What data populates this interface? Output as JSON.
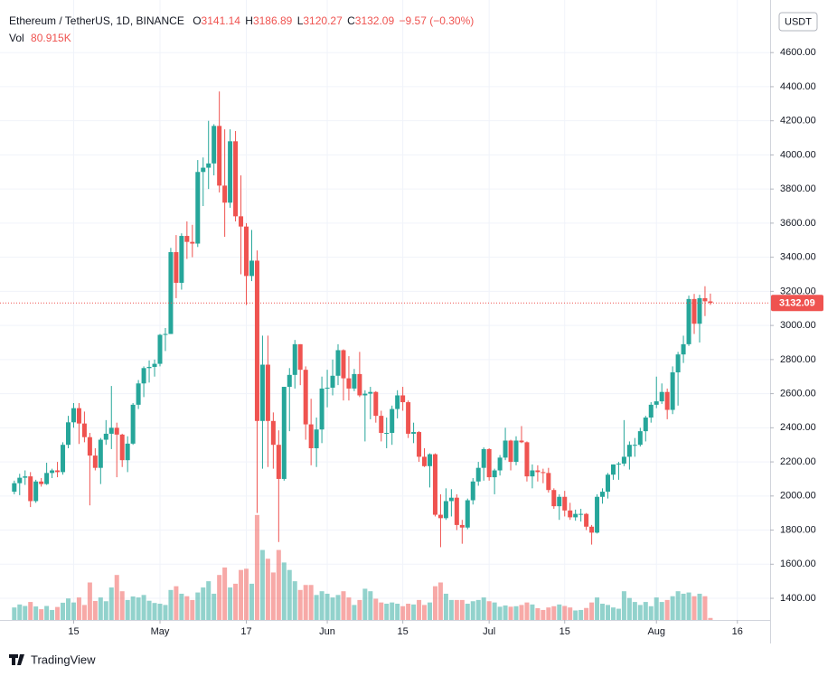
{
  "chart_data": {
    "type": "candlestick",
    "symbol": "Ethereum / TetherUS, 1D, BINANCE",
    "ohlc_prefixes": [
      "O",
      "H",
      "L",
      "C"
    ],
    "change": "−9.57 (−0.30%)",
    "volume_title": "Vol",
    "volume_last_label": "80.915K",
    "currency": "USDT",
    "logo": "TradingView",
    "up_color": "#26a69a",
    "down_color": "#ef5350",
    "grid": true,
    "x": [
      "04-04",
      "04-05",
      "04-06",
      "04-07",
      "04-08",
      "04-09",
      "04-10",
      "04-11",
      "04-12",
      "04-13",
      "04-14",
      "04-15",
      "04-16",
      "04-17",
      "04-18",
      "04-19",
      "04-20",
      "04-21",
      "04-22",
      "04-23",
      "04-24",
      "04-25",
      "04-26",
      "04-27",
      "04-28",
      "04-29",
      "04-30",
      "05-01",
      "05-02",
      "05-03",
      "05-04",
      "05-05",
      "05-06",
      "05-07",
      "05-08",
      "05-09",
      "05-10",
      "05-11",
      "05-12",
      "05-13",
      "05-14",
      "05-15",
      "05-16",
      "05-17",
      "05-18",
      "05-19",
      "05-20",
      "05-21",
      "05-22",
      "05-23",
      "05-24",
      "05-25",
      "05-26",
      "05-27",
      "05-28",
      "05-29",
      "05-30",
      "05-31",
      "06-01",
      "06-02",
      "06-03",
      "06-04",
      "06-05",
      "06-06",
      "06-07",
      "06-08",
      "06-09",
      "06-10",
      "06-11",
      "06-12",
      "06-13",
      "06-14",
      "06-15",
      "06-16",
      "06-17",
      "06-18",
      "06-19",
      "06-20",
      "06-21",
      "06-22",
      "06-23",
      "06-24",
      "06-25",
      "06-26",
      "06-27",
      "06-28",
      "06-29",
      "06-30",
      "07-01",
      "07-02",
      "07-03",
      "07-04",
      "07-05",
      "07-06",
      "07-07",
      "07-08",
      "07-09",
      "07-10",
      "07-11",
      "07-12",
      "07-13",
      "07-14",
      "07-15",
      "07-16",
      "07-17",
      "07-18",
      "07-19",
      "07-20",
      "07-21",
      "07-22",
      "07-23",
      "07-24",
      "07-25",
      "07-26",
      "07-27",
      "07-28",
      "07-29",
      "07-30",
      "07-31",
      "08-01",
      "08-02",
      "08-03",
      "08-04",
      "08-05",
      "08-06",
      "08-07",
      "08-08",
      "08-09",
      "08-10",
      "08-11"
    ],
    "open": [
      2025,
      2075,
      2107,
      2115,
      1970,
      2085,
      2070,
      2135,
      2150,
      2140,
      2300,
      2432,
      2515,
      2425,
      2345,
      2237,
      2165,
      2330,
      2365,
      2400,
      2360,
      2210,
      2307,
      2535,
      2660,
      2750,
      2757,
      2775,
      2945,
      2950,
      3430,
      3250,
      3525,
      3490,
      3480,
      3900,
      3925,
      3950,
      4170,
      3820,
      3720,
      4080,
      3640,
      3580,
      3290,
      3380,
      2440,
      2770,
      2440,
      2300,
      2100,
      2640,
      2710,
      2890,
      2740,
      2420,
      2280,
      2390,
      2630,
      2635,
      2705,
      2855,
      2690,
      2630,
      2715,
      2590,
      2600,
      2610,
      2470,
      2370,
      2370,
      2510,
      2590,
      2550,
      2365,
      2375,
      2230,
      2175,
      2245,
      1890,
      1870,
      1970,
      1990,
      1830,
      1815,
      1975,
      2085,
      2165,
      2275,
      2110,
      2150,
      2225,
      2325,
      2200,
      2325,
      2315,
      2115,
      2150,
      2140,
      2135,
      2035,
      1940,
      1995,
      1915,
      1875,
      1895,
      1895,
      1820,
      1785,
      1995,
      2025,
      2125,
      2185,
      2190,
      2230,
      2300,
      2300,
      2380,
      2460,
      2535,
      2555,
      2610,
      2505,
      2725,
      2830,
      2890,
      3155,
      3010,
      3160,
      3141.14
    ],
    "high": [
      2090,
      2130,
      2150,
      2140,
      2095,
      2105,
      2195,
      2160,
      2200,
      2315,
      2470,
      2545,
      2545,
      2495,
      2370,
      2280,
      2340,
      2445,
      2645,
      2430,
      2365,
      2350,
      2545,
      2680,
      2760,
      2795,
      2800,
      2950,
      2985,
      3455,
      3530,
      3540,
      3610,
      3590,
      3970,
      3985,
      4200,
      4180,
      4372,
      4150,
      4150,
      4140,
      3880,
      3600,
      3560,
      3440,
      2940,
      2940,
      2490,
      2385,
      2640,
      2750,
      2915,
      2890,
      2760,
      2570,
      2460,
      2700,
      2740,
      2800,
      2890,
      2860,
      2820,
      2745,
      2845,
      2620,
      2640,
      2615,
      2500,
      2460,
      2530,
      2620,
      2640,
      2560,
      2430,
      2380,
      2280,
      2250,
      2250,
      2010,
      2045,
      2040,
      2010,
      1860,
      1985,
      2105,
      2200,
      2285,
      2280,
      2160,
      2240,
      2400,
      2330,
      2350,
      2410,
      2320,
      2185,
      2180,
      2160,
      2165,
      2045,
      2010,
      2030,
      1960,
      1920,
      1925,
      1900,
      1830,
      2010,
      2045,
      2135,
      2185,
      2200,
      2445,
      2320,
      2340,
      2400,
      2470,
      2550,
      2700,
      2660,
      2630,
      2760,
      2845,
      2940,
      3175,
      3185,
      3180,
      3230,
      3186.89
    ],
    "low": [
      2010,
      2005,
      2065,
      1935,
      1960,
      2055,
      2065,
      2105,
      2110,
      2125,
      2280,
      2400,
      2305,
      2315,
      1945,
      2150,
      2070,
      2300,
      2275,
      2110,
      2170,
      2140,
      2300,
      2510,
      2580,
      2665,
      2700,
      2760,
      2850,
      2950,
      3160,
      3210,
      3390,
      3400,
      3460,
      3700,
      3800,
      3880,
      3780,
      3520,
      3690,
      3610,
      3300,
      3120,
      3260,
      1900,
      2160,
      2170,
      2160,
      1730,
      2090,
      2380,
      2630,
      2650,
      2330,
      2180,
      2170,
      2310,
      2520,
      2590,
      2650,
      2560,
      2560,
      2615,
      2580,
      2320,
      2450,
      2430,
      2320,
      2280,
      2300,
      2455,
      2500,
      2340,
      2310,
      2200,
      2170,
      2050,
      1880,
      1700,
      1860,
      1880,
      1800,
      1720,
      1805,
      1950,
      2060,
      2090,
      2090,
      2010,
      2120,
      2210,
      2150,
      2180,
      2310,
      2085,
      2045,
      2085,
      2075,
      2020,
      1925,
      1860,
      1880,
      1860,
      1855,
      1850,
      1800,
      1715,
      1780,
      1955,
      1985,
      2095,
      2095,
      2175,
      2155,
      2230,
      2290,
      2320,
      2430,
      2515,
      2540,
      2450,
      2480,
      2530,
      2780,
      2880,
      2950,
      2900,
      3055,
      3120.27
    ],
    "close": [
      2075,
      2107,
      2115,
      1970,
      2085,
      2070,
      2135,
      2150,
      2140,
      2300,
      2432,
      2515,
      2425,
      2345,
      2237,
      2165,
      2330,
      2365,
      2400,
      2360,
      2210,
      2307,
      2535,
      2660,
      2750,
      2757,
      2775,
      2945,
      2950,
      3430,
      3250,
      3525,
      3490,
      3480,
      3900,
      3925,
      3950,
      4170,
      3820,
      3720,
      4080,
      3640,
      3580,
      3290,
      3380,
      2440,
      2770,
      2440,
      2300,
      2100,
      2640,
      2710,
      2890,
      2740,
      2420,
      2280,
      2390,
      2630,
      2635,
      2705,
      2855,
      2690,
      2630,
      2715,
      2590,
      2600,
      2610,
      2470,
      2370,
      2370,
      2510,
      2590,
      2550,
      2365,
      2375,
      2230,
      2175,
      2245,
      1890,
      1870,
      1970,
      1990,
      1830,
      1815,
      1975,
      2085,
      2165,
      2275,
      2110,
      2150,
      2225,
      2325,
      2200,
      2325,
      2315,
      2115,
      2150,
      2140,
      2135,
      2035,
      1940,
      1995,
      1915,
      1875,
      1895,
      1895,
      1820,
      1785,
      1995,
      2025,
      2125,
      2185,
      2190,
      2230,
      2300,
      2300,
      2380,
      2460,
      2535,
      2555,
      2610,
      2505,
      2725,
      2830,
      2890,
      3155,
      3010,
      3160,
      3141.66,
      3132.09
    ],
    "volume": [
      500,
      620,
      560,
      720,
      540,
      430,
      560,
      400,
      520,
      690,
      860,
      700,
      900,
      600,
      1500,
      760,
      900,
      750,
      1300,
      1800,
      1150,
      800,
      940,
      900,
      1000,
      770,
      680,
      650,
      600,
      1200,
      1350,
      1050,
      950,
      800,
      1100,
      1300,
      1550,
      1050,
      1800,
      2100,
      1300,
      1450,
      2000,
      2050,
      1450,
      4200,
      2800,
      2450,
      1900,
      2800,
      2300,
      2000,
      1550,
      1200,
      1400,
      1400,
      1000,
      1150,
      1050,
      900,
      1000,
      1150,
      900,
      600,
      800,
      1250,
      1150,
      850,
      700,
      650,
      700,
      650,
      550,
      650,
      620,
      800,
      600,
      700,
      1350,
      1500,
      1050,
      800,
      800,
      800,
      650,
      750,
      800,
      900,
      750,
      700,
      530,
      580,
      530,
      550,
      600,
      700,
      620,
      470,
      400,
      500,
      550,
      620,
      560,
      500,
      380,
      400,
      480,
      700,
      900,
      650,
      600,
      500,
      450,
      1150,
      880,
      720,
      600,
      720,
      550,
      900,
      720,
      800,
      950,
      1150,
      1050,
      1100,
      950,
      1050,
      950,
      80.915
    ],
    "xticks": [
      {
        "value": "04-15",
        "label": "15"
      },
      {
        "value": "05-01",
        "label": "May"
      },
      {
        "value": "05-17",
        "label": "17"
      },
      {
        "value": "06-01",
        "label": "Jun"
      },
      {
        "value": "06-15",
        "label": "15"
      },
      {
        "value": "07-01",
        "label": "Jul"
      },
      {
        "value": "07-15",
        "label": "15"
      },
      {
        "value": "08-01",
        "label": "Aug"
      },
      {
        "value": "08-16",
        "label": "16"
      }
    ],
    "ylim": [
      1273,
      4866
    ],
    "yticks": [
      {
        "value": 1400,
        "label": "1400.00"
      },
      {
        "value": 1600,
        "label": "1600.00"
      },
      {
        "value": 1800,
        "label": "1800.00"
      },
      {
        "value": 2000,
        "label": "2000.00"
      },
      {
        "value": 2200,
        "label": "2200.00"
      },
      {
        "value": 2400,
        "label": "2400.00"
      },
      {
        "value": 2600,
        "label": "2600.00"
      },
      {
        "value": 2800,
        "label": "2800.00"
      },
      {
        "value": 3000,
        "label": "3000.00"
      },
      {
        "value": 3200,
        "label": "3200.00"
      },
      {
        "value": 3400,
        "label": "3400.00"
      },
      {
        "value": 3600,
        "label": "3600.00"
      },
      {
        "value": 3800,
        "label": "3800.00"
      },
      {
        "value": 4000,
        "label": "4000.00"
      },
      {
        "value": 4200,
        "label": "4200.00"
      },
      {
        "value": 4400,
        "label": "4400.00"
      },
      {
        "value": 4600,
        "label": "4600.00"
      }
    ],
    "volume_lim": [
      0,
      4700
    ]
  }
}
